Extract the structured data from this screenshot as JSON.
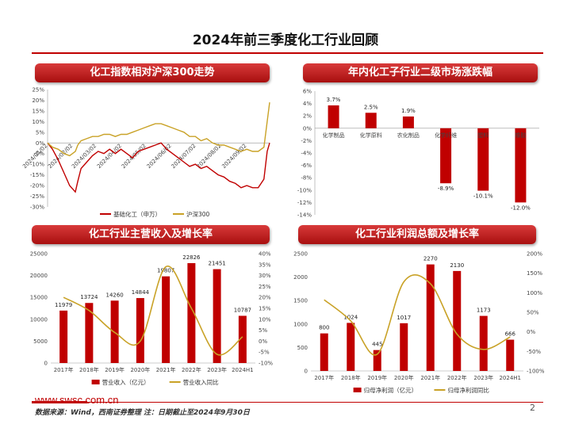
{
  "page": {
    "title": "2024年前三季度化工行业回顾",
    "footer_url": "www.swsc.com.cn",
    "source_note": "数据来源：Wind，西南证券整理  注：日期截止至2024年9月30日",
    "page_number": "2"
  },
  "colors": {
    "primary_red": "#c00000",
    "gold_line": "#c9a227",
    "header_red": "#b81c1c"
  },
  "panels": {
    "top_left_title": "化工指数相对沪深300走势",
    "top_right_title": "年内化工子行业二级市场涨跌幅",
    "bottom_left_title": "化工行业主营收入及增长率",
    "bottom_right_title": "化工行业利润总额及增长率"
  },
  "chart_data": [
    {
      "type": "line",
      "ylim": [
        -30,
        25
      ],
      "yticks": [
        "25%",
        "20%",
        "15%",
        "10%",
        "5%",
        "0%",
        "-5%",
        "-10%",
        "-15%",
        "-20%",
        "-25%",
        "-30%"
      ],
      "xticks": [
        "2024/01/02",
        "2024/02/02",
        "2024/03/02",
        "2024/04/02",
        "2024/05/02",
        "2024/06/02",
        "2024/07/02",
        "2024/08/02",
        "2024/09/02"
      ],
      "series": [
        {
          "name": "基础化工（申万）",
          "color": "#c00000",
          "points": [
            [
              "2024/01/02",
              0
            ],
            [
              "2024/01/08",
              -3
            ],
            [
              "2024/01/15",
              -8
            ],
            [
              "2024/01/22",
              -14
            ],
            [
              "2024/01/29",
              -20
            ],
            [
              "2024/02/05",
              -23
            ],
            [
              "2024/02/08",
              -18
            ],
            [
              "2024/02/12",
              -12
            ],
            [
              "2024/02/19",
              -9
            ],
            [
              "2024/02/26",
              -6
            ],
            [
              "2024/03/04",
              -4
            ],
            [
              "2024/03/11",
              -5
            ],
            [
              "2024/03/18",
              -3
            ],
            [
              "2024/03/25",
              -5
            ],
            [
              "2024/04/01",
              -3
            ],
            [
              "2024/04/08",
              -5
            ],
            [
              "2024/04/15",
              -7
            ],
            [
              "2024/04/22",
              -4
            ],
            [
              "2024/04/29",
              -3
            ],
            [
              "2024/05/06",
              -2
            ],
            [
              "2024/05/13",
              -1
            ],
            [
              "2024/05/20",
              0
            ],
            [
              "2024/05/27",
              -3
            ],
            [
              "2024/06/03",
              -5
            ],
            [
              "2024/06/10",
              -7
            ],
            [
              "2024/06/17",
              -9
            ],
            [
              "2024/06/24",
              -11
            ],
            [
              "2024/07/01",
              -10
            ],
            [
              "2024/07/08",
              -12
            ],
            [
              "2024/07/15",
              -11
            ],
            [
              "2024/07/22",
              -13
            ],
            [
              "2024/07/29",
              -15
            ],
            [
              "2024/08/05",
              -16
            ],
            [
              "2024/08/12",
              -18
            ],
            [
              "2024/08/19",
              -19
            ],
            [
              "2024/08/26",
              -21
            ],
            [
              "2024/09/02",
              -20
            ],
            [
              "2024/09/09",
              -21
            ],
            [
              "2024/09/16",
              -21
            ],
            [
              "2024/09/23",
              -17
            ],
            [
              "2024/09/27",
              -4
            ],
            [
              "2024/09/30",
              0
            ]
          ]
        },
        {
          "name": "沪深300",
          "color": "#c9a227",
          "points": [
            [
              "2024/01/02",
              0
            ],
            [
              "2024/01/08",
              -2
            ],
            [
              "2024/01/15",
              -3
            ],
            [
              "2024/01/22",
              -5
            ],
            [
              "2024/01/29",
              -6
            ],
            [
              "2024/02/05",
              -4
            ],
            [
              "2024/02/08",
              -1
            ],
            [
              "2024/02/12",
              1
            ],
            [
              "2024/02/19",
              2
            ],
            [
              "2024/02/26",
              3
            ],
            [
              "2024/03/04",
              3
            ],
            [
              "2024/03/11",
              4
            ],
            [
              "2024/03/18",
              4
            ],
            [
              "2024/03/25",
              3
            ],
            [
              "2024/04/01",
              4
            ],
            [
              "2024/04/08",
              4
            ],
            [
              "2024/04/15",
              5
            ],
            [
              "2024/04/22",
              6
            ],
            [
              "2024/04/29",
              7
            ],
            [
              "2024/05/06",
              8
            ],
            [
              "2024/05/13",
              9
            ],
            [
              "2024/05/20",
              9
            ],
            [
              "2024/05/27",
              8
            ],
            [
              "2024/06/03",
              7
            ],
            [
              "2024/06/10",
              6
            ],
            [
              "2024/06/17",
              5
            ],
            [
              "2024/06/24",
              3
            ],
            [
              "2024/07/01",
              3
            ],
            [
              "2024/07/08",
              1
            ],
            [
              "2024/07/15",
              2
            ],
            [
              "2024/07/22",
              0
            ],
            [
              "2024/07/29",
              -1
            ],
            [
              "2024/08/05",
              -1
            ],
            [
              "2024/08/12",
              -2
            ],
            [
              "2024/08/19",
              -3
            ],
            [
              "2024/08/26",
              -4
            ],
            [
              "2024/09/02",
              -3
            ],
            [
              "2024/09/09",
              -4
            ],
            [
              "2024/09/16",
              -4
            ],
            [
              "2024/09/23",
              -2
            ],
            [
              "2024/09/27",
              10
            ],
            [
              "2024/09/30",
              19
            ]
          ]
        }
      ]
    },
    {
      "type": "bar",
      "ylim": [
        -14,
        6
      ],
      "yticks": [
        "6%",
        "4%",
        "2%",
        "0%",
        "-2%",
        "-4%",
        "-6%",
        "-8%",
        "-10%",
        "-12%",
        "-14%"
      ],
      "categories": [
        "化学制品",
        "化学原料",
        "农化制品",
        "化学纤维",
        "塑料",
        "橡胶"
      ],
      "values": [
        3.7,
        2.5,
        1.9,
        -8.9,
        -10.1,
        -12.0
      ],
      "labels": [
        "3.7%",
        "2.5%",
        "1.9%",
        "-8.9%",
        "-10.1%",
        "-12.0%"
      ]
    },
    {
      "type": "bar",
      "categories": [
        "2017年",
        "2018年",
        "2019年",
        "2020年",
        "2021年",
        "2022年",
        "2023年",
        "2024H1"
      ],
      "ylim": [
        0,
        25000
      ],
      "yticks": [
        "25000",
        "20000",
        "15000",
        "10000",
        "5000",
        "0"
      ],
      "y2lim": [
        -10,
        40
      ],
      "y2ticks": [
        "40%",
        "35%",
        "30%",
        "25%",
        "20%",
        "15%",
        "10%",
        "5%",
        "0%",
        "-5%",
        "-10%"
      ],
      "series": [
        {
          "name": "营业收入（亿元）",
          "values": [
            11979,
            13724,
            14260,
            14844,
            19807,
            22826,
            21451,
            10787
          ]
        },
        {
          "name": "营业收入同比",
          "values": [
            20,
            14,
            4,
            0,
            34,
            15,
            -6,
            2
          ]
        }
      ]
    },
    {
      "type": "bar",
      "categories": [
        "2017年",
        "2018年",
        "2019年",
        "2020年",
        "2021年",
        "2022年",
        "2023年",
        "2024H1"
      ],
      "ylim": [
        0,
        2500
      ],
      "yticks": [
        "2500",
        "2000",
        "1500",
        "1000",
        "500",
        "0"
      ],
      "y2lim": [
        -100,
        200
      ],
      "y2ticks": [
        "200%",
        "150%",
        "100%",
        "50%",
        "0%",
        "-50%",
        "-100%"
      ],
      "series": [
        {
          "name": "归母净利润（亿元）",
          "values": [
            800,
            1024,
            445,
            1017,
            2270,
            2130,
            1173,
            666
          ]
        },
        {
          "name": "归母净利润同比",
          "values": [
            82,
            28,
            -57,
            128,
            123,
            -6,
            -45,
            -13
          ]
        }
      ]
    }
  ]
}
